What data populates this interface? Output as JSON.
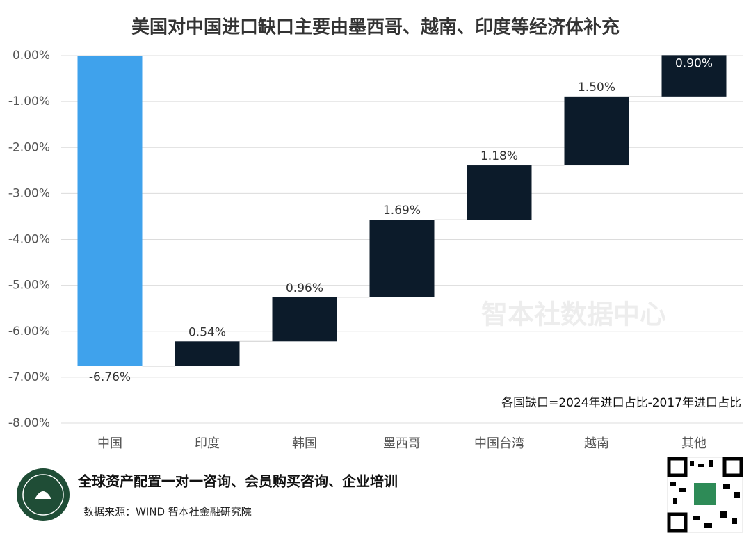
{
  "chart_data": {
    "type": "waterfall",
    "title": "美国对中国进口缺口主要由墨西哥、越南、印度等经济体补充",
    "categories": [
      "中国",
      "印度",
      "韩国",
      "墨西哥",
      "中国台湾",
      "越南",
      "其他"
    ],
    "values": [
      -6.76,
      0.54,
      0.96,
      1.69,
      1.18,
      1.5,
      0.9
    ],
    "value_labels": [
      "-6.76%",
      "0.54%",
      "0.96%",
      "1.69%",
      "1.18%",
      "1.50%",
      "0.90%"
    ],
    "colors": [
      "#3fa2ec",
      "#0c1b2a",
      "#0c1b2a",
      "#0c1b2a",
      "#0c1b2a",
      "#0c1b2a",
      "#0c1b2a"
    ],
    "ylim": [
      -8,
      0
    ],
    "yticks": [
      {
        "value": 0,
        "label": "0.00%"
      },
      {
        "value": -1,
        "label": "-1.00%"
      },
      {
        "value": -2,
        "label": "-2.00%"
      },
      {
        "value": -3,
        "label": "-3.00%"
      },
      {
        "value": -4,
        "label": "-4.00%"
      },
      {
        "value": -5,
        "label": "-5.00%"
      },
      {
        "value": -6,
        "label": "-6.00%"
      },
      {
        "value": -7,
        "label": "-7.00%"
      },
      {
        "value": -8,
        "label": "-8.00%"
      }
    ],
    "grid": true,
    "annotation": "各国缺口=2024年进口占比-2017年进口占比",
    "watermark": "智本社数据中心"
  },
  "footer": {
    "slogan": "全球资产配置一对一咨询、会员购买咨询、企业培训",
    "source": "数据来源：WIND 智本社金融研究院"
  }
}
